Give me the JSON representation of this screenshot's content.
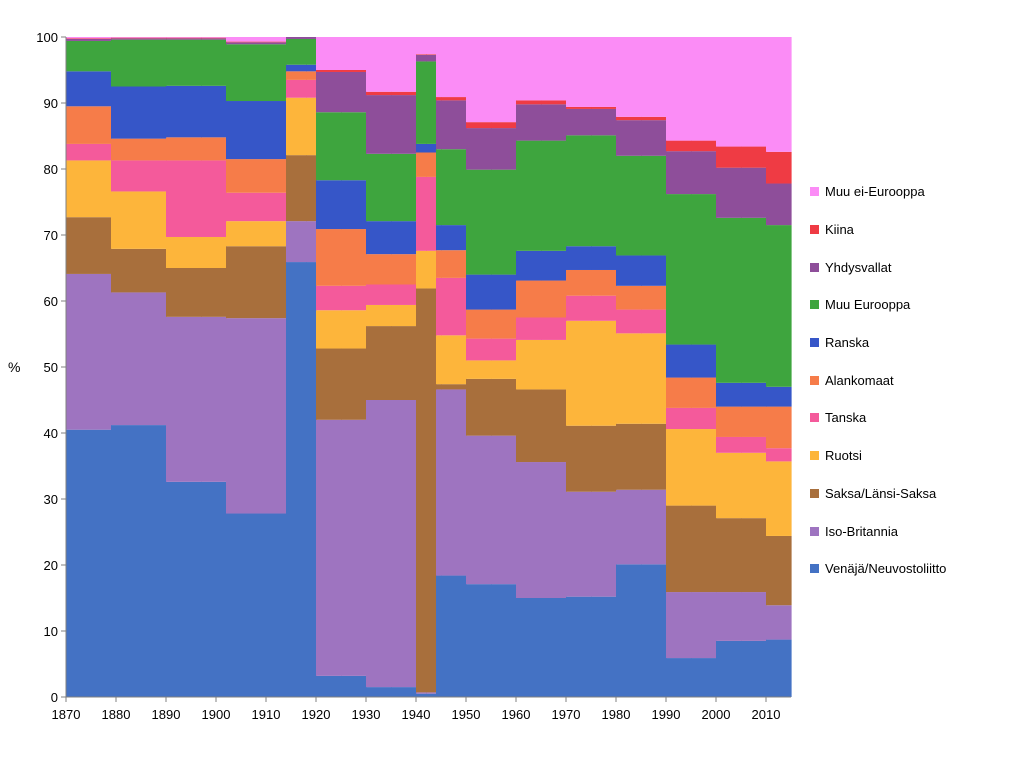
{
  "chart_data": {
    "type": "area",
    "subtype": "stacked-100-step",
    "title": "",
    "xlabel": "",
    "ylabel": "%",
    "xlim": [
      1870,
      2015
    ],
    "ylim": [
      0,
      100
    ],
    "yticks": [
      0,
      10,
      20,
      30,
      40,
      50,
      60,
      70,
      80,
      90,
      100
    ],
    "xticks": [
      1870,
      1880,
      1890,
      1900,
      1910,
      1920,
      1930,
      1940,
      1950,
      1960,
      1970,
      1980,
      1990,
      2000,
      2010
    ],
    "legend_position": "right",
    "periods": [
      [
        1870,
        1879
      ],
      [
        1879,
        1890
      ],
      [
        1890,
        1897
      ],
      [
        1897,
        1902
      ],
      [
        1902,
        1914
      ],
      [
        1914,
        1918
      ],
      [
        1918,
        1920
      ],
      [
        1920,
        1925
      ],
      [
        1925,
        1930
      ],
      [
        1930,
        1935
      ],
      [
        1935,
        1940
      ],
      [
        1940,
        1942
      ],
      [
        1942,
        1944
      ],
      [
        1944,
        1945
      ],
      [
        1945,
        1950
      ],
      [
        1950,
        1955
      ],
      [
        1955,
        1960
      ],
      [
        1960,
        1965
      ],
      [
        1965,
        1970
      ],
      [
        1970,
        1975
      ],
      [
        1975,
        1980
      ],
      [
        1980,
        1985
      ],
      [
        1985,
        1990
      ],
      [
        1990,
        1995
      ],
      [
        1995,
        2000
      ],
      [
        2000,
        2005
      ],
      [
        2005,
        2010
      ],
      [
        2010,
        2015
      ]
    ],
    "series": [
      {
        "name": "Venäjä/Neuvostoliitto",
        "color": "#4472C4",
        "values": [
          40.5,
          41.2,
          32.6,
          32.6,
          27.8,
          65.9,
          65.9,
          3.2,
          3.2,
          1.5,
          1.5,
          0.5,
          0.5,
          18.4,
          18.4,
          17.1,
          17.1,
          15.0,
          15.0,
          15.2,
          15.2,
          20.1,
          20.1,
          5.9,
          5.9,
          8.5,
          8.5,
          8.7
        ]
      },
      {
        "name": "Iso-Britannia",
        "color": "#9E74C0",
        "values": [
          23.6,
          20.1,
          25.0,
          25.0,
          29.6,
          6.2,
          6.2,
          38.8,
          38.8,
          43.5,
          43.5,
          0.2,
          0.2,
          28.2,
          28.2,
          22.5,
          22.5,
          20.6,
          20.6,
          15.9,
          15.9,
          11.3,
          11.3,
          10.0,
          10.0,
          7.4,
          7.4,
          5.2
        ]
      },
      {
        "name": "Saksa/Länsi-Saksa",
        "color": "#A86F3C",
        "values": [
          8.6,
          6.6,
          7.4,
          7.4,
          10.9,
          10.0,
          10.0,
          10.8,
          10.8,
          11.2,
          11.2,
          61.2,
          61.2,
          0.8,
          0.8,
          8.6,
          8.6,
          11.0,
          11.0,
          10.0,
          10.0,
          10.0,
          10.0,
          13.1,
          13.1,
          11.2,
          11.2,
          10.5
        ]
      },
      {
        "name": "Ruotsi",
        "color": "#FDB53B",
        "values": [
          8.6,
          8.7,
          4.7,
          4.7,
          3.8,
          8.7,
          8.7,
          5.8,
          5.8,
          3.2,
          3.2,
          5.7,
          5.7,
          7.4,
          7.4,
          2.8,
          2.8,
          7.5,
          7.5,
          15.9,
          15.9,
          13.7,
          13.7,
          11.6,
          11.6,
          9.9,
          9.9,
          11.3
        ]
      },
      {
        "name": "Tanska",
        "color": "#F45A9B",
        "values": [
          2.5,
          4.7,
          11.6,
          11.6,
          4.3,
          2.7,
          2.7,
          3.7,
          3.7,
          3.1,
          3.1,
          11.2,
          11.2,
          8.7,
          8.7,
          3.3,
          3.3,
          3.4,
          3.4,
          3.8,
          3.8,
          3.6,
          3.6,
          3.2,
          3.2,
          2.4,
          2.4,
          2.0
        ]
      },
      {
        "name": "Alankomaat",
        "color": "#F67C49",
        "values": [
          5.7,
          3.3,
          3.5,
          3.5,
          5.1,
          1.3,
          1.3,
          8.6,
          8.6,
          4.6,
          4.6,
          3.7,
          3.7,
          4.2,
          4.2,
          4.4,
          4.4,
          5.6,
          5.6,
          3.9,
          3.9,
          3.6,
          3.6,
          4.6,
          4.6,
          4.6,
          4.6,
          6.3
        ]
      },
      {
        "name": "Ranska",
        "color": "#3656C8",
        "values": [
          5.3,
          7.9,
          7.8,
          7.8,
          8.8,
          1.0,
          1.0,
          7.4,
          7.4,
          5.0,
          5.0,
          1.3,
          1.3,
          3.8,
          3.8,
          5.3,
          5.3,
          4.5,
          4.5,
          3.6,
          3.6,
          4.6,
          4.6,
          5.0,
          5.0,
          3.6,
          3.6,
          3.0
        ]
      },
      {
        "name": "Muu Eurooppa",
        "color": "#3EA53E",
        "values": [
          4.6,
          7.1,
          7.0,
          7.0,
          8.6,
          3.9,
          3.9,
          10.3,
          10.3,
          10.2,
          10.2,
          12.5,
          12.5,
          11.5,
          11.5,
          15.9,
          15.9,
          16.7,
          16.7,
          16.8,
          16.8,
          15.1,
          15.1,
          22.8,
          22.8,
          25.0,
          25.0,
          24.5
        ]
      },
      {
        "name": "Yhdysvallat",
        "color": "#8E4E9A",
        "values": [
          0.3,
          0.2,
          0.2,
          0.2,
          0.3,
          0.3,
          0.3,
          6.1,
          6.1,
          8.9,
          8.9,
          1.0,
          1.0,
          7.4,
          7.4,
          6.3,
          6.3,
          5.5,
          5.5,
          4.0,
          4.0,
          5.4,
          5.4,
          6.5,
          6.5,
          7.6,
          7.6,
          6.3
        ]
      },
      {
        "name": "Kiina",
        "color": "#EF3B44",
        "values": [
          0.1,
          0.1,
          0.1,
          0.1,
          0.1,
          0.0,
          0.0,
          0.3,
          0.3,
          0.5,
          0.5,
          0.1,
          0.1,
          0.5,
          0.5,
          0.9,
          0.9,
          0.6,
          0.6,
          0.3,
          0.3,
          0.5,
          0.5,
          1.6,
          1.6,
          3.2,
          3.2,
          4.8
        ]
      },
      {
        "name": "Muu ei-Eurooppa",
        "color": "#FB8CF6",
        "values": [
          0.2,
          0.1,
          0.1,
          0.1,
          1.5,
          0.0,
          0.0,
          5.0,
          5.0,
          8.3,
          8.3,
          2.6,
          2.6,
          9.1,
          9.1,
          12.9,
          12.9,
          9.6,
          9.6,
          10.6,
          10.6,
          12.1,
          12.1,
          15.7,
          15.7,
          16.6,
          16.6,
          17.4
        ]
      }
    ]
  }
}
